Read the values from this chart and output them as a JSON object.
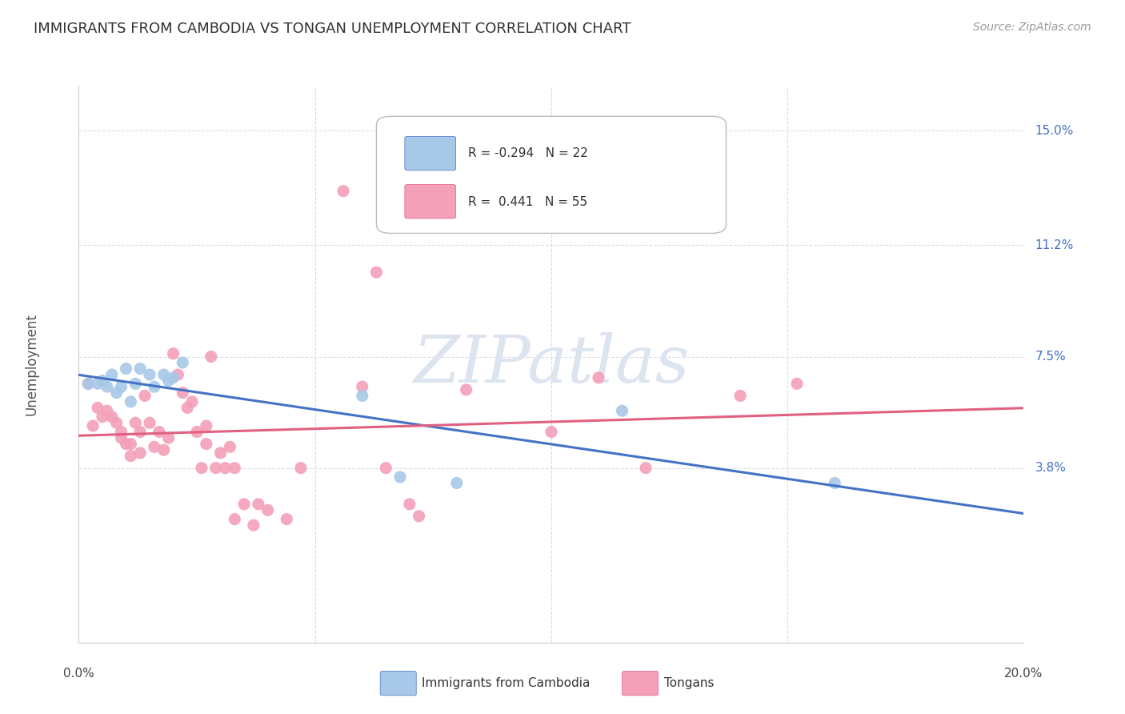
{
  "title": "IMMIGRANTS FROM CAMBODIA VS TONGAN UNEMPLOYMENT CORRELATION CHART",
  "source": "Source: ZipAtlas.com",
  "ylabel": "Unemployment",
  "xlim": [
    0.0,
    0.2
  ],
  "ylim": [
    -0.02,
    0.165
  ],
  "yticks": [
    0.038,
    0.075,
    0.112,
    0.15
  ],
  "ytick_labels": [
    "3.8%",
    "7.5%",
    "11.2%",
    "15.0%"
  ],
  "xticks": [
    0.0,
    0.05,
    0.1,
    0.15,
    0.2
  ],
  "color_blue": "#a8c8e8",
  "color_pink": "#f4a0b8",
  "color_blue_line": "#4472c4",
  "color_pink_line": "#e06080",
  "color_grid": "#d8dce8",
  "color_title": "#333333",
  "color_source": "#999999",
  "color_axis_right": "#4472c4",
  "watermark": "ZIPatlas",
  "watermark_color": "#dce4f0",
  "background_color": "#ffffff",
  "legend_bg": "#ffffff",
  "legend_border": "#cccccc",
  "blue_points": [
    [
      0.002,
      0.066
    ],
    [
      0.004,
      0.066
    ],
    [
      0.005,
      0.067
    ],
    [
      0.006,
      0.065
    ],
    [
      0.007,
      0.069
    ],
    [
      0.008,
      0.063
    ],
    [
      0.009,
      0.065
    ],
    [
      0.01,
      0.071
    ],
    [
      0.011,
      0.06
    ],
    [
      0.012,
      0.066
    ],
    [
      0.013,
      0.071
    ],
    [
      0.015,
      0.069
    ],
    [
      0.016,
      0.065
    ],
    [
      0.018,
      0.069
    ],
    [
      0.019,
      0.067
    ],
    [
      0.02,
      0.068
    ],
    [
      0.022,
      0.073
    ],
    [
      0.06,
      0.062
    ],
    [
      0.068,
      0.035
    ],
    [
      0.08,
      0.033
    ],
    [
      0.115,
      0.057
    ],
    [
      0.16,
      0.033
    ]
  ],
  "pink_points": [
    [
      0.002,
      0.066
    ],
    [
      0.003,
      0.052
    ],
    [
      0.004,
      0.058
    ],
    [
      0.005,
      0.055
    ],
    [
      0.006,
      0.057
    ],
    [
      0.007,
      0.055
    ],
    [
      0.008,
      0.053
    ],
    [
      0.009,
      0.05
    ],
    [
      0.009,
      0.048
    ],
    [
      0.01,
      0.046
    ],
    [
      0.011,
      0.046
    ],
    [
      0.011,
      0.042
    ],
    [
      0.012,
      0.053
    ],
    [
      0.013,
      0.05
    ],
    [
      0.013,
      0.043
    ],
    [
      0.014,
      0.062
    ],
    [
      0.015,
      0.053
    ],
    [
      0.016,
      0.045
    ],
    [
      0.017,
      0.05
    ],
    [
      0.018,
      0.044
    ],
    [
      0.019,
      0.048
    ],
    [
      0.02,
      0.076
    ],
    [
      0.021,
      0.069
    ],
    [
      0.022,
      0.063
    ],
    [
      0.023,
      0.058
    ],
    [
      0.024,
      0.06
    ],
    [
      0.025,
      0.05
    ],
    [
      0.026,
      0.038
    ],
    [
      0.027,
      0.052
    ],
    [
      0.027,
      0.046
    ],
    [
      0.028,
      0.075
    ],
    [
      0.029,
      0.038
    ],
    [
      0.03,
      0.043
    ],
    [
      0.031,
      0.038
    ],
    [
      0.032,
      0.045
    ],
    [
      0.033,
      0.038
    ],
    [
      0.033,
      0.021
    ],
    [
      0.035,
      0.026
    ],
    [
      0.037,
      0.019
    ],
    [
      0.038,
      0.026
    ],
    [
      0.04,
      0.024
    ],
    [
      0.044,
      0.021
    ],
    [
      0.047,
      0.038
    ],
    [
      0.056,
      0.13
    ],
    [
      0.06,
      0.065
    ],
    [
      0.063,
      0.103
    ],
    [
      0.065,
      0.038
    ],
    [
      0.07,
      0.026
    ],
    [
      0.072,
      0.022
    ],
    [
      0.082,
      0.064
    ],
    [
      0.1,
      0.05
    ],
    [
      0.11,
      0.068
    ],
    [
      0.12,
      0.038
    ],
    [
      0.14,
      0.062
    ],
    [
      0.152,
      0.066
    ]
  ]
}
